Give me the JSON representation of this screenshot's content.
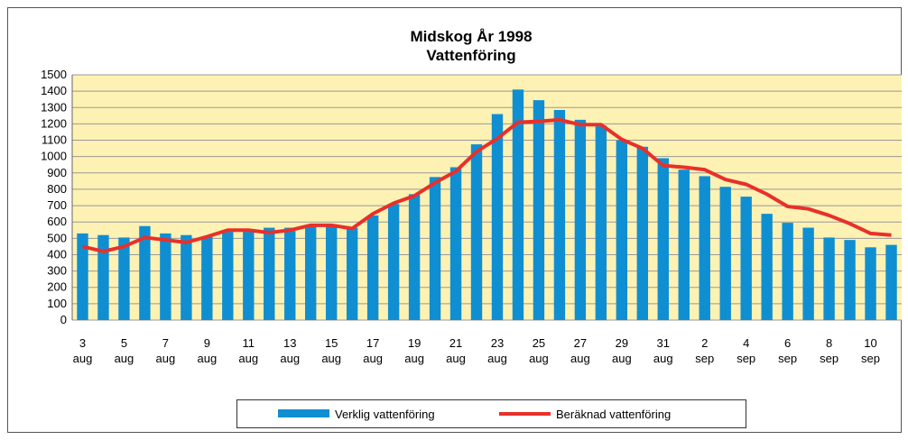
{
  "chart_data": {
    "type": "bar-line",
    "title": "Midskog År 1998",
    "subtitle": "Vattenföring",
    "categories": [
      "3 aug",
      null,
      "5 aug",
      null,
      "7 aug",
      null,
      "9 aug",
      null,
      "11 aug",
      null,
      "13 aug",
      null,
      "15 aug",
      null,
      "17 aug",
      null,
      "19 aug",
      null,
      "21 aug",
      null,
      "23 aug",
      null,
      "25 aug",
      null,
      "27 aug",
      null,
      "29 aug",
      null,
      "31 aug",
      null,
      "2 sep",
      null,
      "4 sep",
      null,
      "6 sep",
      null,
      "8 sep",
      null,
      "10 sep",
      null
    ],
    "series": [
      {
        "name": "Verklig vattenföring",
        "type": "bar",
        "color": "#0f8fd2",
        "values": [
          530,
          520,
          505,
          575,
          530,
          520,
          510,
          540,
          540,
          565,
          565,
          580,
          575,
          565,
          640,
          710,
          770,
          875,
          935,
          1075,
          1260,
          1410,
          1345,
          1285,
          1225,
          1190,
          1100,
          1060,
          990,
          920,
          880,
          815,
          755,
          650,
          595,
          565,
          505,
          490,
          445,
          460
        ]
      },
      {
        "name": "Beräknad vattenföring",
        "type": "line",
        "color": "#e8302a",
        "values": [
          450,
          420,
          450,
          505,
          490,
          475,
          510,
          550,
          550,
          535,
          550,
          580,
          580,
          560,
          650,
          715,
          760,
          840,
          910,
          1030,
          1110,
          1210,
          1215,
          1225,
          1195,
          1195,
          1105,
          1050,
          945,
          935,
          920,
          860,
          830,
          770,
          695,
          680,
          640,
          590,
          530,
          520
        ]
      }
    ],
    "ylim": [
      0,
      1500
    ],
    "yticks": [
      0,
      100,
      200,
      300,
      400,
      500,
      600,
      700,
      800,
      900,
      1000,
      1100,
      1200,
      1300,
      1400,
      1500
    ],
    "grid": true,
    "legend": "bottom"
  }
}
